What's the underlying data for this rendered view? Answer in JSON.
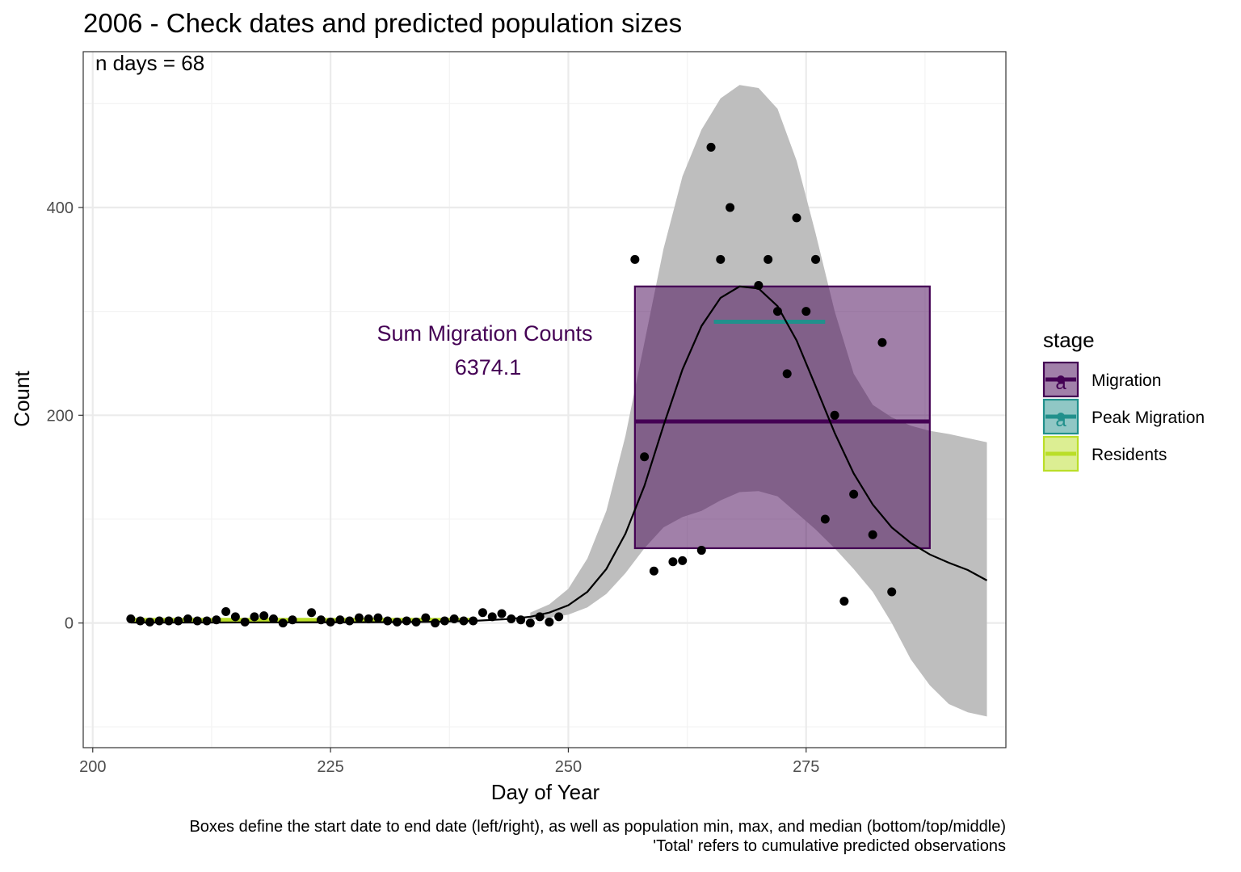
{
  "chart_data": {
    "type": "scatter",
    "title": "2006 - Check dates and predicted population sizes",
    "xlabel": "Day of Year",
    "ylabel": "Count",
    "xlim": [
      199,
      296
    ],
    "ylim": [
      -120,
      550
    ],
    "x_ticks": [
      200,
      225,
      250,
      275
    ],
    "y_ticks": [
      0,
      200,
      400
    ],
    "grid": true,
    "legend_position": "right",
    "legend_title": "stage",
    "annotation": "n days = 68",
    "migration_label": "Sum Migration Counts",
    "migration_value": "6374.1",
    "caption_line1": "Boxes define the start date to end date (left/right), as well as population min, max, and median (bottom/top/middle)",
    "caption_line2": "'Total' refers to cumulative predicted observations",
    "colors": {
      "migration": "#440154",
      "peak_migration": "#21908C",
      "residents": "#BADE28",
      "ribbon": "#BEBEBE",
      "points": "#000000",
      "curve": "#000000"
    },
    "legend": [
      {
        "label": "Migration",
        "color": "#440154",
        "glyph": "a"
      },
      {
        "label": "Peak Migration",
        "color": "#21908C",
        "glyph": "a"
      },
      {
        "label": "Residents",
        "color": "#BADE28",
        "glyph": ""
      }
    ],
    "boxes": [
      {
        "stage": "Migration",
        "x_start": 257,
        "x_end": 288,
        "ymin": 72,
        "ymax": 324,
        "median": 194
      },
      {
        "stage": "Peak Migration",
        "x_start": 265.3,
        "x_end": 277,
        "ymin": 290,
        "ymax": 290,
        "median": 290
      },
      {
        "stage": "Residents",
        "x_start": 204,
        "x_end": 240,
        "ymin": 3,
        "ymax": 3,
        "median": 3
      }
    ],
    "points": [
      {
        "x": 204,
        "y": 4
      },
      {
        "x": 205,
        "y": 2
      },
      {
        "x": 206,
        "y": 1
      },
      {
        "x": 207,
        "y": 2
      },
      {
        "x": 208,
        "y": 2
      },
      {
        "x": 209,
        "y": 2
      },
      {
        "x": 210,
        "y": 4
      },
      {
        "x": 211,
        "y": 2
      },
      {
        "x": 212,
        "y": 2
      },
      {
        "x": 213,
        "y": 3
      },
      {
        "x": 214,
        "y": 11
      },
      {
        "x": 215,
        "y": 6
      },
      {
        "x": 216,
        "y": 1
      },
      {
        "x": 217,
        "y": 6
      },
      {
        "x": 218,
        "y": 7
      },
      {
        "x": 219,
        "y": 4
      },
      {
        "x": 220,
        "y": 0
      },
      {
        "x": 221,
        "y": 3
      },
      {
        "x": 223,
        "y": 10
      },
      {
        "x": 224,
        "y": 3
      },
      {
        "x": 225,
        "y": 1
      },
      {
        "x": 226,
        "y": 3
      },
      {
        "x": 227,
        "y": 2
      },
      {
        "x": 228,
        "y": 5
      },
      {
        "x": 229,
        "y": 4
      },
      {
        "x": 230,
        "y": 5
      },
      {
        "x": 231,
        "y": 2
      },
      {
        "x": 232,
        "y": 1
      },
      {
        "x": 233,
        "y": 2
      },
      {
        "x": 234,
        "y": 1
      },
      {
        "x": 235,
        "y": 5
      },
      {
        "x": 236,
        "y": 0
      },
      {
        "x": 237,
        "y": 2
      },
      {
        "x": 238,
        "y": 4
      },
      {
        "x": 239,
        "y": 2
      },
      {
        "x": 240,
        "y": 2
      },
      {
        "x": 241,
        "y": 10
      },
      {
        "x": 242,
        "y": 6
      },
      {
        "x": 243,
        "y": 9
      },
      {
        "x": 244,
        "y": 4
      },
      {
        "x": 245,
        "y": 3
      },
      {
        "x": 246,
        "y": 0
      },
      {
        "x": 247,
        "y": 6
      },
      {
        "x": 248,
        "y": 1
      },
      {
        "x": 249,
        "y": 6
      },
      {
        "x": 257,
        "y": 350
      },
      {
        "x": 258,
        "y": 160
      },
      {
        "x": 259,
        "y": 50
      },
      {
        "x": 261,
        "y": 59
      },
      {
        "x": 262,
        "y": 60
      },
      {
        "x": 264,
        "y": 70
      },
      {
        "x": 265,
        "y": 458
      },
      {
        "x": 266,
        "y": 350
      },
      {
        "x": 267,
        "y": 400
      },
      {
        "x": 270,
        "y": 325
      },
      {
        "x": 271,
        "y": 350
      },
      {
        "x": 272,
        "y": 300
      },
      {
        "x": 273,
        "y": 240
      },
      {
        "x": 274,
        "y": 390
      },
      {
        "x": 275,
        "y": 300
      },
      {
        "x": 276,
        "y": 350
      },
      {
        "x": 277,
        "y": 100
      },
      {
        "x": 278,
        "y": 200
      },
      {
        "x": 279,
        "y": 21
      },
      {
        "x": 280,
        "y": 124
      },
      {
        "x": 282,
        "y": 85
      },
      {
        "x": 283,
        "y": 270
      },
      {
        "x": 284,
        "y": 30
      }
    ],
    "curve": [
      [
        204,
        0.5
      ],
      [
        210,
        0.5
      ],
      [
        220,
        0.6
      ],
      [
        230,
        0.8
      ],
      [
        235,
        1
      ],
      [
        240,
        2
      ],
      [
        244,
        4
      ],
      [
        246,
        6
      ],
      [
        248,
        10
      ],
      [
        250,
        17
      ],
      [
        252,
        30
      ],
      [
        254,
        52
      ],
      [
        256,
        86
      ],
      [
        258,
        132
      ],
      [
        260,
        190
      ],
      [
        262,
        244
      ],
      [
        264,
        286
      ],
      [
        266,
        313
      ],
      [
        268,
        324
      ],
      [
        270,
        322
      ],
      [
        272,
        305
      ],
      [
        274,
        272
      ],
      [
        276,
        228
      ],
      [
        278,
        183
      ],
      [
        280,
        144
      ],
      [
        282,
        114
      ],
      [
        284,
        92
      ],
      [
        286,
        77
      ],
      [
        288,
        66
      ],
      [
        290,
        58
      ],
      [
        292,
        51
      ],
      [
        294,
        41
      ]
    ],
    "ribbon": [
      [
        246,
        3,
        10
      ],
      [
        248,
        5,
        18
      ],
      [
        250,
        8,
        33
      ],
      [
        252,
        15,
        62
      ],
      [
        254,
        28,
        108
      ],
      [
        256,
        48,
        180
      ],
      [
        258,
        72,
        270
      ],
      [
        260,
        92,
        360
      ],
      [
        262,
        102,
        430
      ],
      [
        264,
        108,
        475
      ],
      [
        266,
        118,
        505
      ],
      [
        268,
        126,
        518
      ],
      [
        270,
        127,
        515
      ],
      [
        272,
        122,
        495
      ],
      [
        274,
        106,
        445
      ],
      [
        276,
        90,
        375
      ],
      [
        278,
        72,
        300
      ],
      [
        280,
        52,
        240
      ],
      [
        282,
        30,
        210
      ],
      [
        284,
        0,
        198
      ],
      [
        286,
        -35,
        190
      ],
      [
        288,
        -60,
        185
      ],
      [
        290,
        -78,
        182
      ],
      [
        292,
        -86,
        178
      ],
      [
        294,
        -90,
        174
      ]
    ]
  }
}
